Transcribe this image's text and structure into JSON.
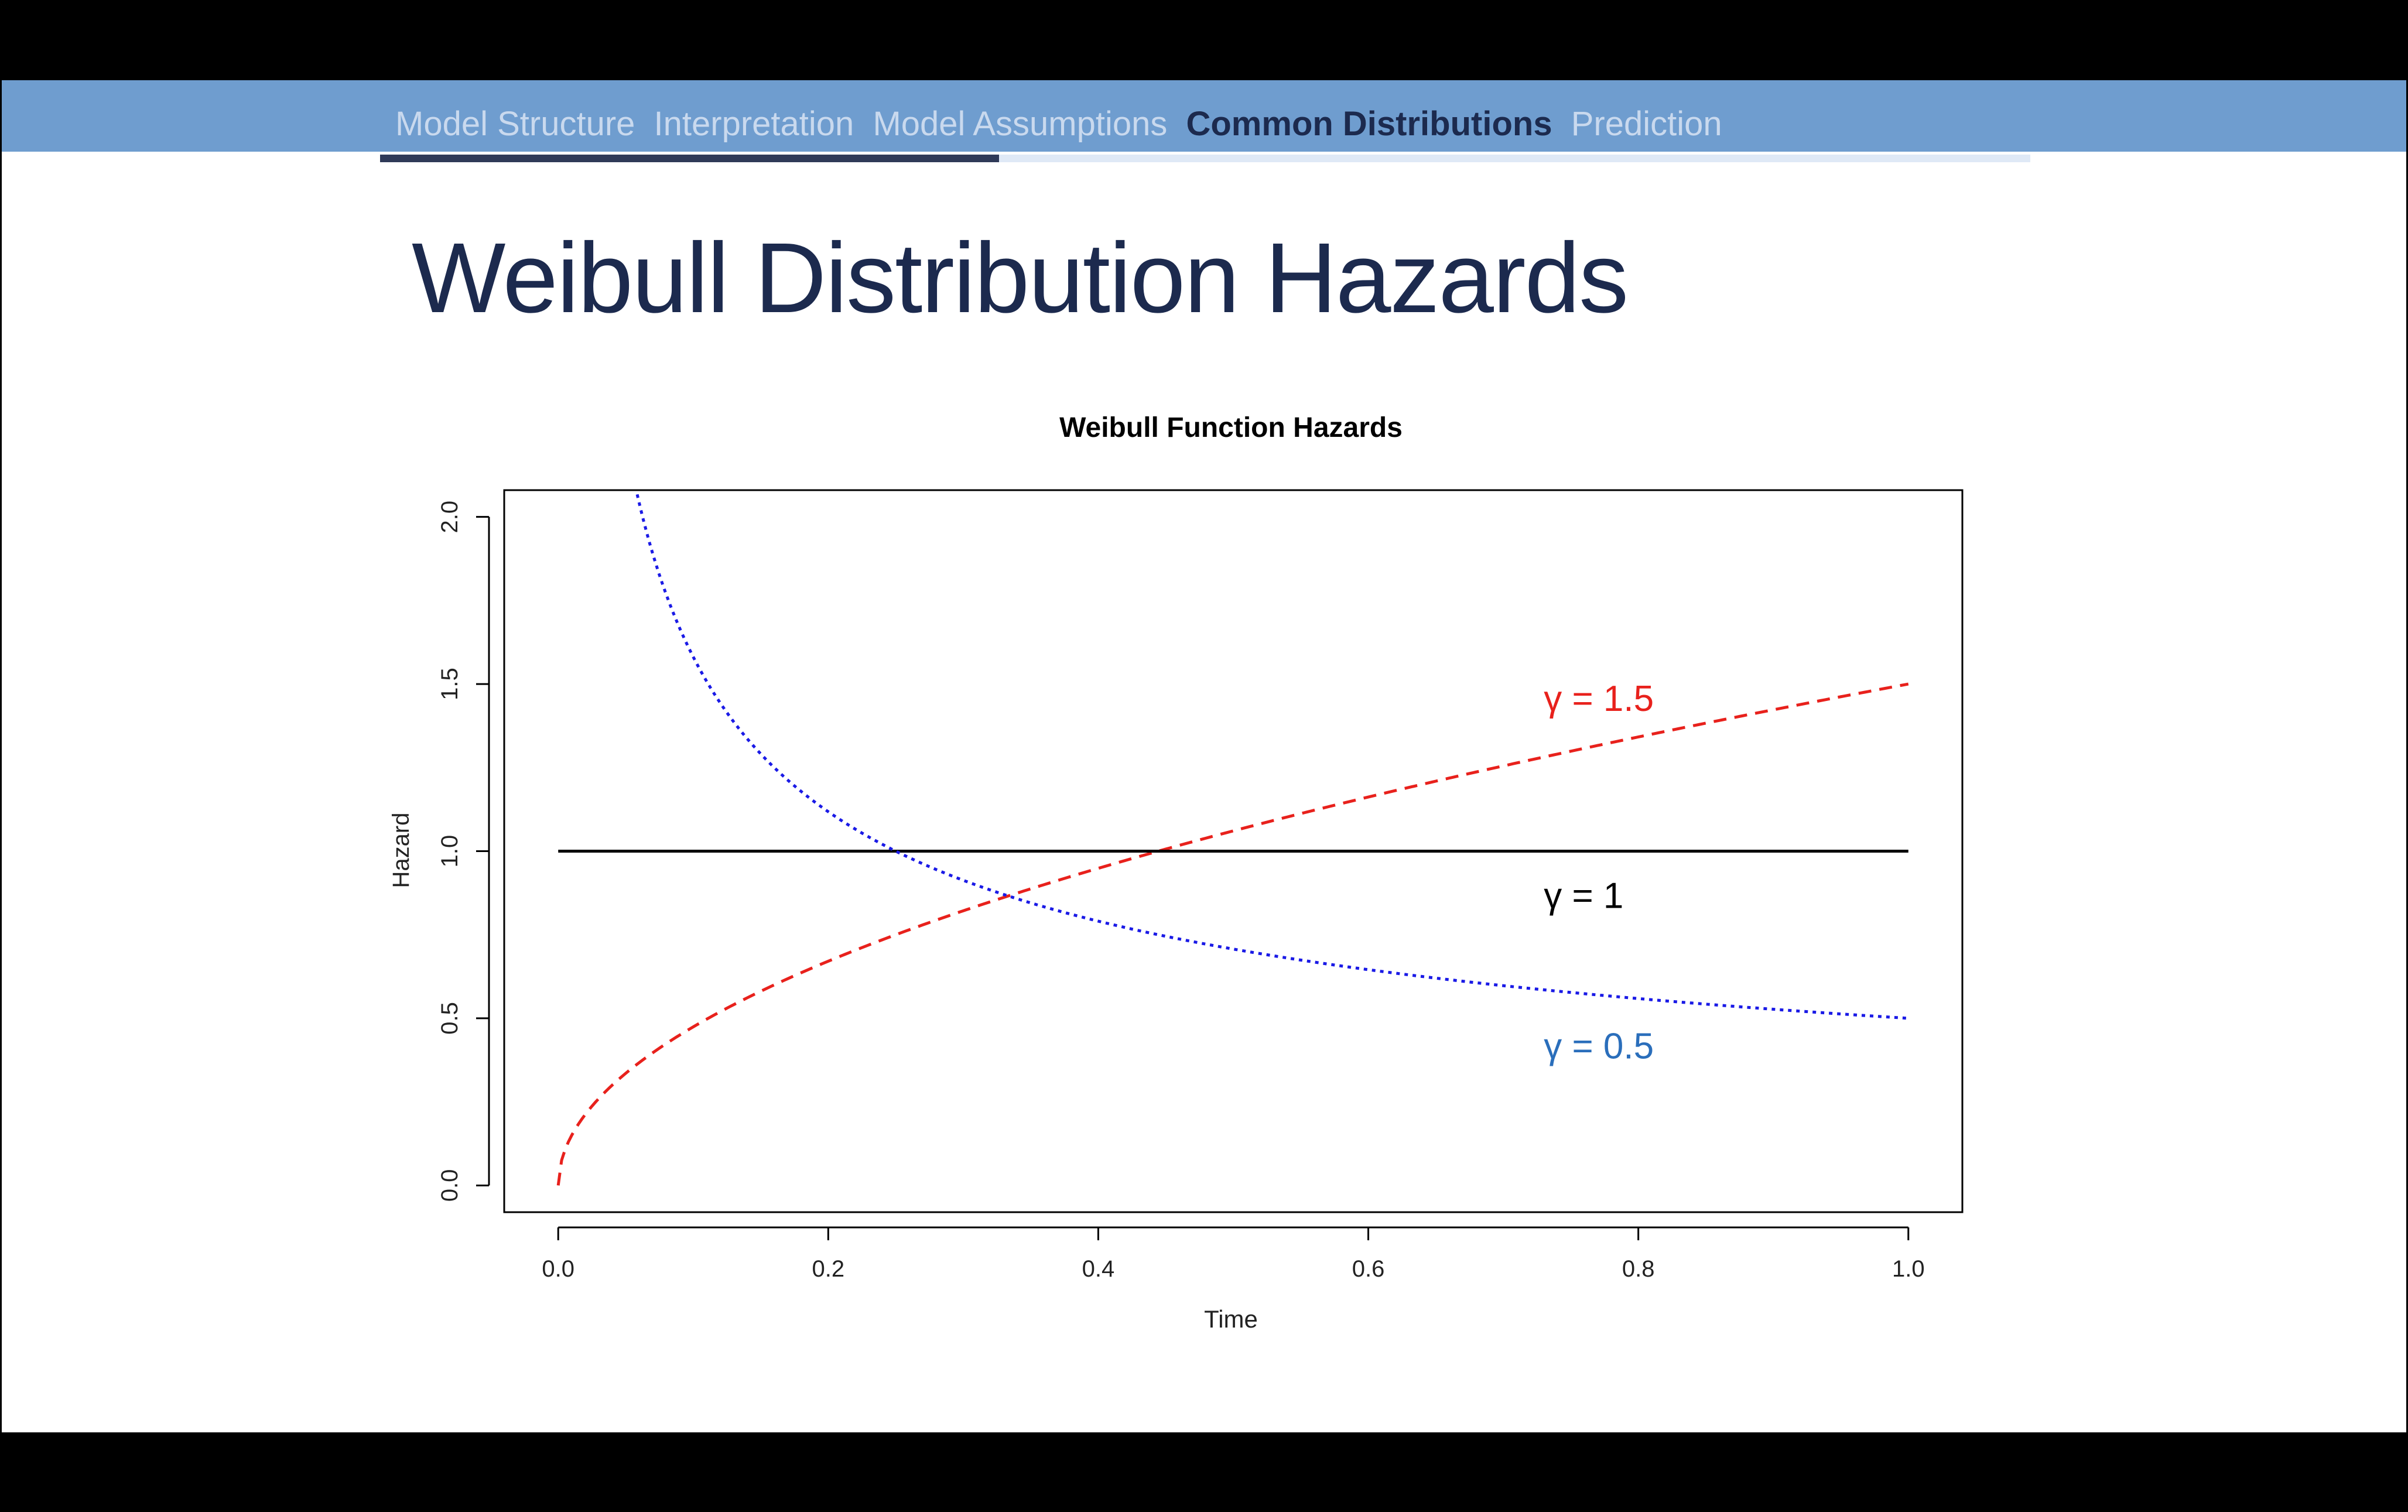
{
  "nav": {
    "items": [
      {
        "label": "Model Structure",
        "active": false
      },
      {
        "label": "Interpretation",
        "active": false
      },
      {
        "label": "Model Assumptions",
        "active": false
      },
      {
        "label": "Common Distributions",
        "active": true
      },
      {
        "label": "Prediction",
        "active": false
      }
    ],
    "progress": 0.375
  },
  "slide": {
    "title": "Weibull Distribution Hazards"
  },
  "chart_data": {
    "type": "line",
    "title": "Weibull Function Hazards",
    "xlabel": "Time",
    "ylabel": "Hazard",
    "xlim": [
      -0.04,
      1.04
    ],
    "ylim": [
      -0.08,
      2.08
    ],
    "xticks": [
      "0.0",
      "0.2",
      "0.4",
      "0.6",
      "0.8",
      "1.0"
    ],
    "xtick_values": [
      0,
      0.2,
      0.4,
      0.6,
      0.8,
      1.0
    ],
    "yticks": [
      "0.0",
      "0.5",
      "1.0",
      "1.5",
      "2.0"
    ],
    "ytick_values": [
      0,
      0.5,
      1.0,
      1.5,
      2.0
    ],
    "grid": false,
    "series": [
      {
        "name": "γ = 1.5",
        "shape": 1.5,
        "color": "#e8211c",
        "linestyle": "dashed",
        "x": [
          0,
          0.01,
          0.02,
          0.04,
          0.06,
          0.1,
          0.15,
          0.2,
          0.25,
          0.3,
          0.35,
          0.4,
          0.45,
          0.5,
          0.6,
          0.7,
          0.8,
          0.9,
          1.0
        ],
        "y": [
          0,
          0.15,
          0.212,
          0.3,
          0.367,
          0.474,
          0.581,
          0.671,
          0.75,
          0.822,
          0.887,
          0.949,
          1.006,
          1.061,
          1.162,
          1.255,
          1.342,
          1.423,
          1.5
        ]
      },
      {
        "name": "γ = 1",
        "shape": 1,
        "color": "#000000",
        "linestyle": "solid",
        "x": [
          0,
          1.0
        ],
        "y": [
          1.0,
          1.0
        ]
      },
      {
        "name": "γ = 0.5",
        "shape": 0.5,
        "color": "#1a1ae6",
        "linestyle": "dotted",
        "x": [
          0.0585,
          0.07,
          0.08,
          0.1,
          0.12,
          0.15,
          0.2,
          0.25,
          0.3,
          0.35,
          0.4,
          0.45,
          0.5,
          0.6,
          0.7,
          0.8,
          0.9,
          1.0
        ],
        "y": [
          2.067,
          1.89,
          1.768,
          1.581,
          1.443,
          1.291,
          1.118,
          1.0,
          0.913,
          0.845,
          0.791,
          0.745,
          0.707,
          0.645,
          0.598,
          0.559,
          0.527,
          0.5
        ]
      }
    ],
    "annotations": [
      {
        "text": "γ = 1.5",
        "x": 0.73,
        "y": 1.42,
        "color": "#e8211c"
      },
      {
        "text": "γ = 1",
        "x": 0.73,
        "y": 0.83,
        "color": "#000000"
      },
      {
        "text": "γ = 0.5",
        "x": 0.73,
        "y": 0.38,
        "color": "#2a6ebb"
      }
    ]
  }
}
